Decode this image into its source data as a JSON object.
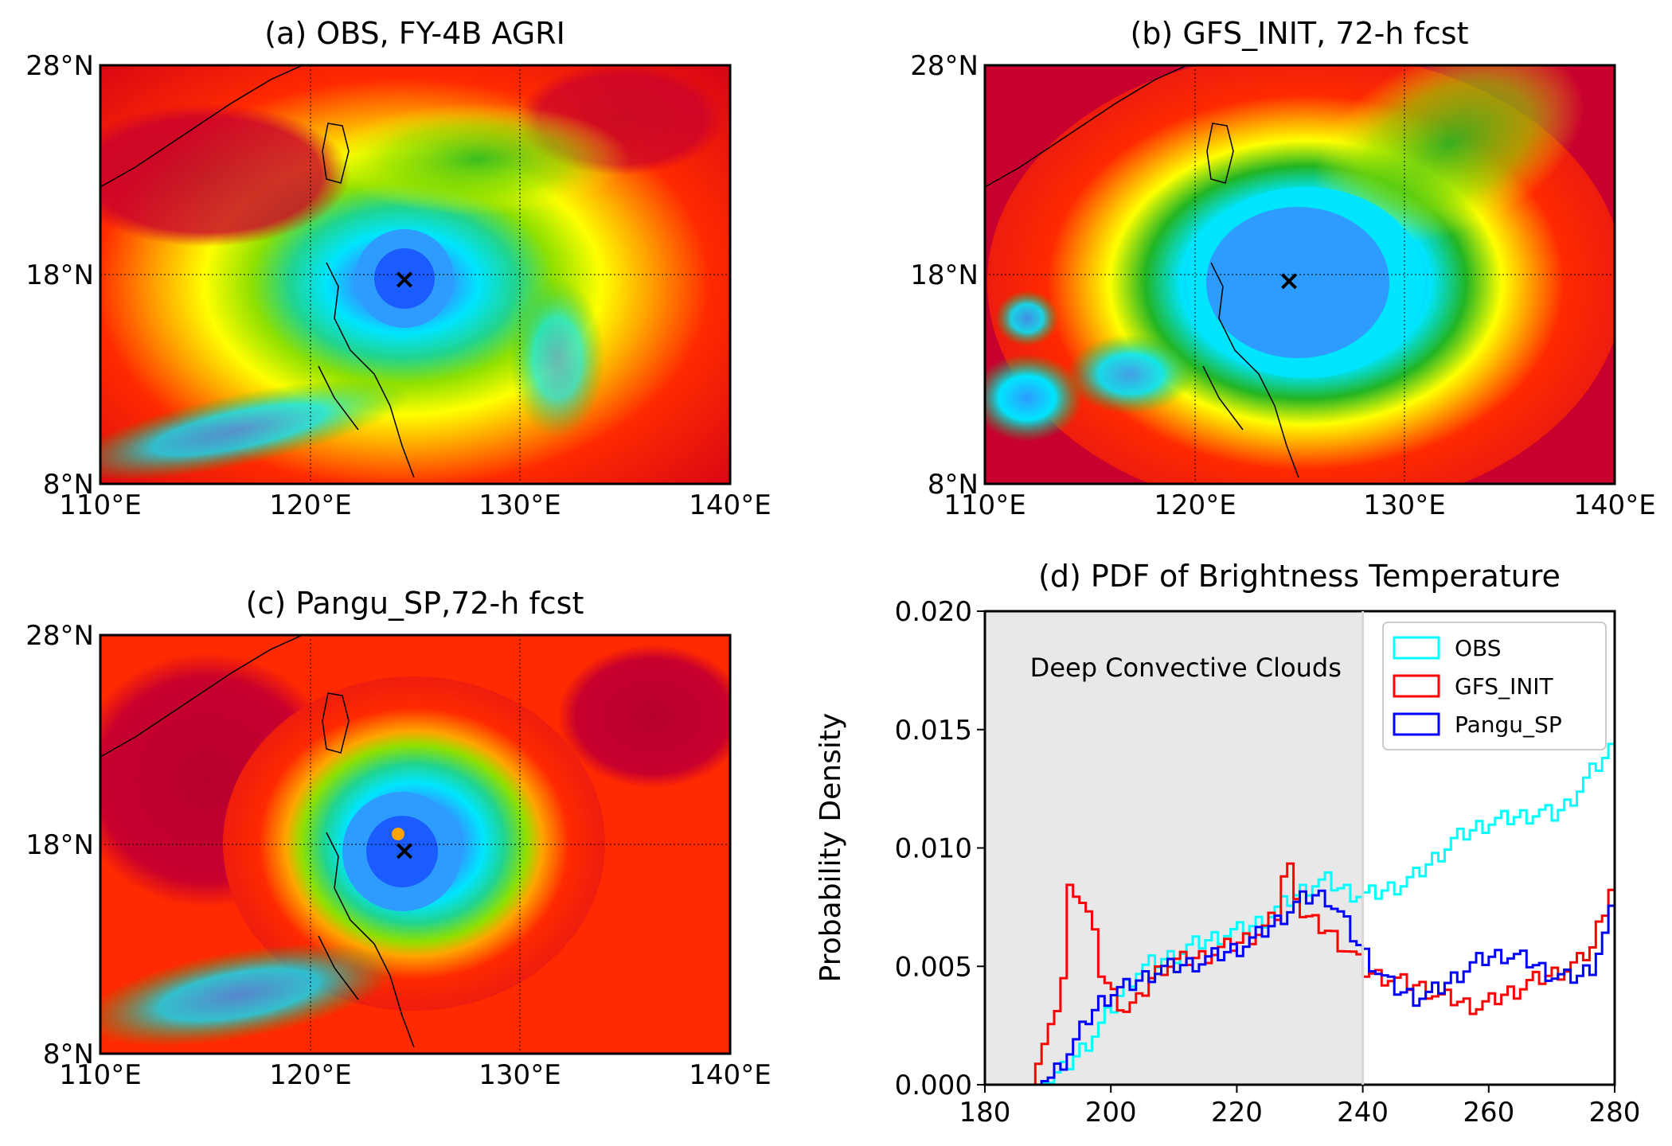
{
  "colors": {
    "obs": "#00ffff",
    "gfs": "#ff0000",
    "pangu": "#0000ff",
    "shade": "#e8e8e8",
    "map_scale": [
      "#1a5cff",
      "#2e9bff",
      "#00e5ff",
      "#21d48f",
      "#22b524",
      "#8fe000",
      "#ffff00",
      "#ffa500",
      "#ff2a00",
      "#c8002e"
    ]
  },
  "maps": [
    {
      "title": "(a) OBS, FY-4B AGRI",
      "lat_ticks": [
        "28°N",
        "18°N",
        "8°N"
      ],
      "lon_ticks": [
        "110°E",
        "120°E",
        "130°E",
        "140°E"
      ],
      "center_marker": "×",
      "tc_center": {
        "lon": 124.5,
        "lat": 17.8
      },
      "eye_radius_deg": 1.6,
      "cloud_radius_deg": 5.5
    },
    {
      "title": "(b) GFS_INIT, 72-h fcst",
      "lat_ticks": [
        "28°N",
        "18°N",
        "8°N"
      ],
      "lon_ticks": [
        "110°E",
        "120°E",
        "130°E",
        "140°E"
      ],
      "center_marker": "×",
      "tc_center": {
        "lon": 124.5,
        "lat": 17.7
      },
      "eye_radius_deg": 3.2,
      "cloud_radius_deg": 8.0
    },
    {
      "title": "(c) Pangu_SP,72-h fcst",
      "lat_ticks": [
        "28°N",
        "18°N",
        "8°N"
      ],
      "lon_ticks": [
        "110°E",
        "120°E",
        "130°E",
        "140°E"
      ],
      "center_marker": "×",
      "tc_center": {
        "lon": 124.5,
        "lat": 17.7
      },
      "eye_radius_deg": 2.6,
      "cloud_radius_deg": 7.0
    }
  ],
  "chart_data": {
    "type": "line",
    "title": "(d) PDF of Brightness Temperature",
    "xlabel": "",
    "ylabel": "Probability Density",
    "xlim": [
      180,
      280
    ],
    "ylim": [
      0,
      0.02
    ],
    "xticks": [
      180,
      200,
      220,
      240,
      260,
      280
    ],
    "yticks": [
      0.0,
      0.005,
      0.01,
      0.015,
      0.02
    ],
    "ytick_labels": [
      "0.000",
      "0.005",
      "0.010",
      "0.015",
      "0.020"
    ],
    "shaded_region": {
      "x0": 180,
      "x1": 240,
      "label": "Deep Convective Clouds"
    },
    "legend_position": "top-right",
    "step_width": 1,
    "series": [
      {
        "name": "OBS",
        "color": "#00ffff",
        "x": [
          180,
          185,
          188,
          190,
          192,
          194,
          196,
          198,
          200,
          202,
          204,
          206,
          208,
          210,
          212,
          214,
          216,
          218,
          220,
          222,
          224,
          226,
          228,
          230,
          232,
          234,
          236,
          238,
          240,
          242,
          244,
          246,
          248,
          250,
          252,
          254,
          256,
          258,
          260,
          262,
          264,
          266,
          268,
          270,
          272,
          274,
          276,
          278,
          280
        ],
        "y": [
          0,
          0,
          0,
          0.0002,
          0.0006,
          0.0012,
          0.0018,
          0.0025,
          0.0033,
          0.0042,
          0.0048,
          0.0051,
          0.0053,
          0.0055,
          0.0058,
          0.006,
          0.0062,
          0.0064,
          0.0065,
          0.0067,
          0.007,
          0.0074,
          0.0078,
          0.0082,
          0.0085,
          0.0086,
          0.0083,
          0.0081,
          0.008,
          0.0081,
          0.0083,
          0.0085,
          0.0088,
          0.0093,
          0.0098,
          0.0103,
          0.0106,
          0.0109,
          0.0111,
          0.0112,
          0.0113,
          0.0114,
          0.0115,
          0.0114,
          0.0118,
          0.0125,
          0.0132,
          0.0138,
          0.0145
        ]
      },
      {
        "name": "GFS_INIT",
        "color": "#ff0000",
        "x": [
          180,
          185,
          187,
          188,
          190,
          192,
          193,
          194,
          195,
          196,
          197,
          198,
          200,
          202,
          204,
          206,
          208,
          210,
          212,
          214,
          216,
          218,
          220,
          222,
          224,
          226,
          227,
          228,
          229,
          230,
          232,
          234,
          236,
          238,
          240,
          242,
          244,
          246,
          248,
          250,
          252,
          254,
          256,
          258,
          260,
          262,
          264,
          266,
          268,
          270,
          272,
          274,
          276,
          278,
          280
        ],
        "y": [
          0,
          0,
          0,
          0.001,
          0.0022,
          0.0045,
          0.0082,
          0.0083,
          0.0078,
          0.0072,
          0.0062,
          0.0048,
          0.0038,
          0.0032,
          0.0035,
          0.0045,
          0.005,
          0.0052,
          0.0053,
          0.0054,
          0.0056,
          0.0058,
          0.006,
          0.0063,
          0.0066,
          0.0072,
          0.0088,
          0.0091,
          0.0082,
          0.0072,
          0.0068,
          0.0065,
          0.006,
          0.0055,
          0.0048,
          0.0046,
          0.0045,
          0.0043,
          0.0042,
          0.004,
          0.0037,
          0.0036,
          0.0034,
          0.0033,
          0.0035,
          0.0038,
          0.004,
          0.0043,
          0.0045,
          0.0047,
          0.0049,
          0.0052,
          0.0058,
          0.0075,
          0.0092
        ]
      },
      {
        "name": "Pangu_SP",
        "color": "#0000ff",
        "x": [
          180,
          185,
          188,
          190,
          192,
          194,
          196,
          198,
          200,
          202,
          204,
          206,
          208,
          210,
          212,
          214,
          216,
          218,
          220,
          222,
          224,
          226,
          228,
          230,
          232,
          234,
          236,
          238,
          240,
          242,
          244,
          246,
          248,
          250,
          252,
          254,
          256,
          258,
          260,
          262,
          264,
          266,
          268,
          270,
          272,
          274,
          276,
          278,
          280
        ],
        "y": [
          0,
          0,
          0,
          0.0003,
          0.001,
          0.0018,
          0.0028,
          0.0035,
          0.0039,
          0.0041,
          0.0044,
          0.0047,
          0.0049,
          0.005,
          0.0051,
          0.0052,
          0.0054,
          0.0056,
          0.0058,
          0.0061,
          0.0065,
          0.0069,
          0.0074,
          0.0078,
          0.008,
          0.0079,
          0.0072,
          0.0063,
          0.0055,
          0.0048,
          0.0042,
          0.0039,
          0.0037,
          0.0038,
          0.0041,
          0.0045,
          0.0049,
          0.0052,
          0.0054,
          0.0055,
          0.0054,
          0.0052,
          0.0049,
          0.0046,
          0.0045,
          0.0046,
          0.005,
          0.0063,
          0.0081
        ]
      }
    ]
  }
}
